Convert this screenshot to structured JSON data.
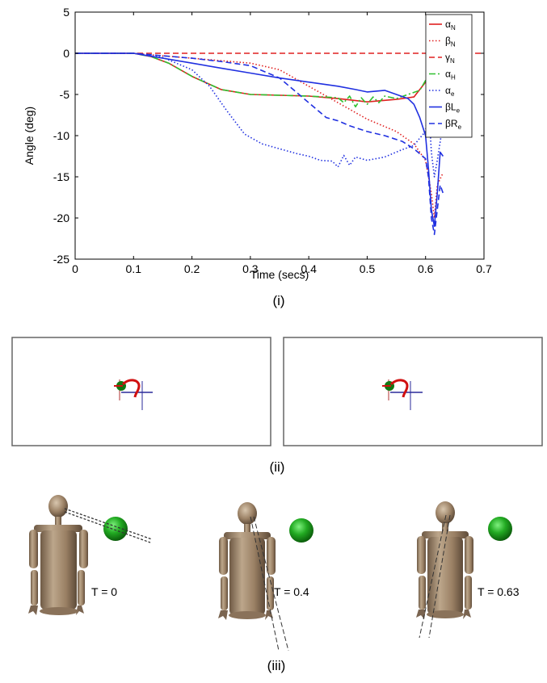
{
  "chart_data": {
    "type": "line",
    "xlabel": "Time (secs)",
    "ylabel": "Angle (deg)",
    "xlim": [
      0,
      0.7
    ],
    "ylim": [
      -25,
      5
    ],
    "xticks": [
      "0",
      "0.1",
      "0.2",
      "0.3",
      "0.4",
      "0.5",
      "0.6",
      "0.7"
    ],
    "yticks": [
      "5",
      "0",
      "-5",
      "-10",
      "-15",
      "-20",
      "-25"
    ],
    "grid": false,
    "legend": "top-right",
    "series": [
      {
        "name": "α",
        "sub": "N",
        "color": "#e02020",
        "dash": "solid",
        "points": [
          [
            0,
            0
          ],
          [
            0.1,
            0
          ],
          [
            0.13,
            -0.4
          ],
          [
            0.16,
            -1.2
          ],
          [
            0.2,
            -2.8
          ],
          [
            0.25,
            -4.4
          ],
          [
            0.3,
            -5
          ],
          [
            0.35,
            -5.1
          ],
          [
            0.4,
            -5.2
          ],
          [
            0.45,
            -5.5
          ],
          [
            0.5,
            -5.9
          ],
          [
            0.55,
            -5.6
          ],
          [
            0.58,
            -5.3
          ],
          [
            0.6,
            -3.5
          ],
          [
            0.61,
            -3
          ],
          [
            0.62,
            -3.8
          ],
          [
            0.63,
            -5
          ]
        ]
      },
      {
        "name": "β",
        "sub": "N",
        "color": "#e02020",
        "dash": "1.5,2.5",
        "points": [
          [
            0,
            0
          ],
          [
            0.1,
            0
          ],
          [
            0.15,
            -0.3
          ],
          [
            0.2,
            -0.6
          ],
          [
            0.25,
            -0.9
          ],
          [
            0.3,
            -1.2
          ],
          [
            0.35,
            -2
          ],
          [
            0.4,
            -4
          ],
          [
            0.45,
            -6
          ],
          [
            0.5,
            -8
          ],
          [
            0.55,
            -9.5
          ],
          [
            0.58,
            -11
          ],
          [
            0.6,
            -13
          ],
          [
            0.61,
            -17
          ],
          [
            0.615,
            -20
          ],
          [
            0.62,
            -16
          ],
          [
            0.63,
            -14.5
          ]
        ]
      },
      {
        "name": "γ",
        "sub": "N",
        "color": "#e02020",
        "dash": "7,4",
        "points": [
          [
            0,
            0
          ],
          [
            0.7,
            0
          ]
        ]
      },
      {
        "name": "α",
        "sub": "H",
        "color": "#30c030",
        "dash": "8,3,2,3",
        "points": [
          [
            0,
            0
          ],
          [
            0.1,
            0
          ],
          [
            0.13,
            -0.4
          ],
          [
            0.16,
            -1.2
          ],
          [
            0.2,
            -2.8
          ],
          [
            0.25,
            -4.4
          ],
          [
            0.3,
            -5
          ],
          [
            0.35,
            -5.1
          ],
          [
            0.4,
            -5.2
          ],
          [
            0.45,
            -5.4
          ],
          [
            0.46,
            -6
          ],
          [
            0.47,
            -5.2
          ],
          [
            0.48,
            -6.5
          ],
          [
            0.49,
            -5.4
          ],
          [
            0.5,
            -6.2
          ],
          [
            0.51,
            -5.3
          ],
          [
            0.52,
            -6
          ],
          [
            0.53,
            -5.2
          ],
          [
            0.55,
            -5.5
          ],
          [
            0.57,
            -5
          ],
          [
            0.59,
            -4.5
          ],
          [
            0.6,
            -3.3
          ],
          [
            0.605,
            -2.8
          ],
          [
            0.61,
            -3.2
          ],
          [
            0.62,
            -4.5
          ],
          [
            0.63,
            -5
          ]
        ]
      },
      {
        "name": "α",
        "sub": "e",
        "color": "#2030e0",
        "dash": "1.5,2.5",
        "points": [
          [
            0,
            0
          ],
          [
            0.1,
            0
          ],
          [
            0.15,
            -0.5
          ],
          [
            0.2,
            -2
          ],
          [
            0.23,
            -4
          ],
          [
            0.26,
            -7
          ],
          [
            0.29,
            -9.8
          ],
          [
            0.32,
            -11
          ],
          [
            0.35,
            -11.6
          ],
          [
            0.38,
            -12.2
          ],
          [
            0.4,
            -12.5
          ],
          [
            0.42,
            -13
          ],
          [
            0.44,
            -13.1
          ],
          [
            0.45,
            -13.8
          ],
          [
            0.46,
            -12.4
          ],
          [
            0.47,
            -13.6
          ],
          [
            0.48,
            -12.6
          ],
          [
            0.5,
            -13
          ],
          [
            0.53,
            -12.6
          ],
          [
            0.56,
            -11.7
          ],
          [
            0.58,
            -11.2
          ],
          [
            0.59,
            -10.3
          ],
          [
            0.6,
            -9.5
          ],
          [
            0.605,
            -6
          ],
          [
            0.61,
            -12
          ],
          [
            0.615,
            -15
          ],
          [
            0.62,
            -13
          ],
          [
            0.63,
            -8.5
          ]
        ]
      },
      {
        "name": "βL",
        "sub": "e",
        "color": "#2030e0",
        "dash": "solid",
        "points": [
          [
            0,
            0
          ],
          [
            0.1,
            0
          ],
          [
            0.15,
            -0.6
          ],
          [
            0.2,
            -1.2
          ],
          [
            0.25,
            -1.8
          ],
          [
            0.3,
            -2.4
          ],
          [
            0.35,
            -3
          ],
          [
            0.4,
            -3.5
          ],
          [
            0.45,
            -4
          ],
          [
            0.48,
            -4.4
          ],
          [
            0.5,
            -4.7
          ],
          [
            0.53,
            -4.5
          ],
          [
            0.55,
            -5
          ],
          [
            0.57,
            -5.5
          ],
          [
            0.58,
            -6.2
          ],
          [
            0.59,
            -7.8
          ],
          [
            0.6,
            -10
          ],
          [
            0.605,
            -14
          ],
          [
            0.61,
            -19
          ],
          [
            0.615,
            -21
          ],
          [
            0.62,
            -17
          ],
          [
            0.625,
            -12
          ],
          [
            0.63,
            -12.5
          ]
        ]
      },
      {
        "name": "βR",
        "sub": "e",
        "color": "#2030e0",
        "dash": "7,4",
        "points": [
          [
            0,
            0
          ],
          [
            0.1,
            0
          ],
          [
            0.15,
            -0.3
          ],
          [
            0.2,
            -0.6
          ],
          [
            0.25,
            -1
          ],
          [
            0.3,
            -1.5
          ],
          [
            0.35,
            -3
          ],
          [
            0.4,
            -6
          ],
          [
            0.43,
            -7.8
          ],
          [
            0.45,
            -8.2
          ],
          [
            0.47,
            -8.8
          ],
          [
            0.5,
            -9.5
          ],
          [
            0.53,
            -10
          ],
          [
            0.56,
            -10.7
          ],
          [
            0.58,
            -11.6
          ],
          [
            0.6,
            -12.8
          ],
          [
            0.605,
            -15
          ],
          [
            0.61,
            -20
          ],
          [
            0.615,
            -22
          ],
          [
            0.62,
            -19
          ],
          [
            0.625,
            -16
          ],
          [
            0.63,
            -17
          ]
        ]
      }
    ]
  },
  "captions": {
    "i": "(i)",
    "ii": "(ii)",
    "iii": "(iii)"
  },
  "figures": [
    {
      "label": "T = 0"
    },
    {
      "label": "T = 0.4"
    },
    {
      "label": "T = 0.63"
    }
  ],
  "colors": {
    "red": "#e02020",
    "green": "#30c030",
    "blue": "#2030e0",
    "ball_green": "#22aa22",
    "body_tan": "#a0876a"
  }
}
